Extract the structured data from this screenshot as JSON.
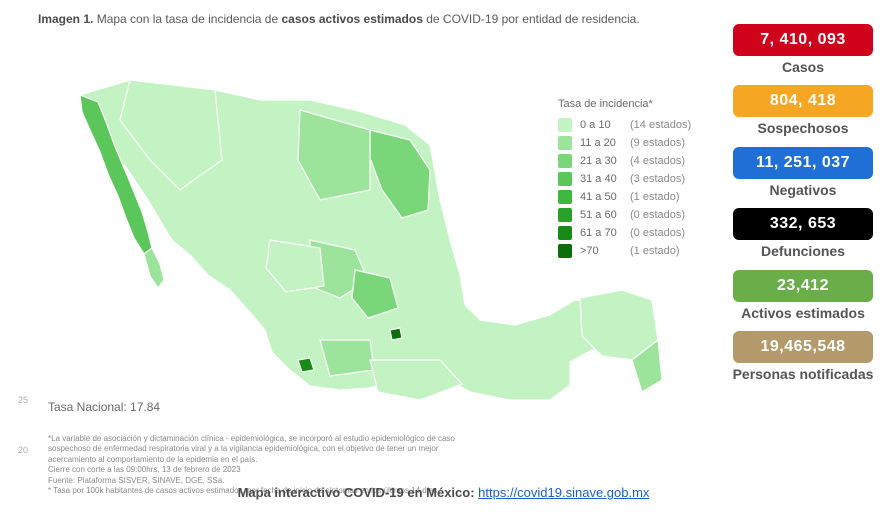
{
  "title_prefix": "Imagen 1.",
  "title_text_a": " Mapa con la tasa de incidencia de ",
  "title_bold": "casos activos estimados",
  "title_text_b": " de COVID-19 por entidad de residencia.",
  "map": {
    "legend_title": "Tasa de incidencia*",
    "colors": [
      "#c3f2c3",
      "#9ce49c",
      "#79d679",
      "#5bc75b",
      "#3fb63f",
      "#2aa02a",
      "#188a18",
      "#0a6e0a"
    ],
    "ranges": [
      "0 a 10",
      "11 a 20",
      "21 a 30",
      "31 a 40",
      "41 a 50",
      "51 a 60",
      "61 a 70",
      ">70"
    ],
    "counts": [
      "(14 estados)",
      "(9 estados)",
      "(4 estados)",
      "(3 estados)",
      "(1 estado)",
      "(0 estados)",
      "(0 estados)",
      "(1 estado)"
    ],
    "tasa_nacional": "Tasa Nacional: 17.84",
    "outline_color": "#ffffff",
    "water_color": "#ffffff"
  },
  "footnotes": [
    "*La variable de asociación y dictaminación clínica - epidemiológica, se incorporó al estudio epidemiológico de caso sospechoso de enfermedad respiratoria viral y a la vigilancia epidemiológica, con el objetivo de tener un mejor acercamiento al comportamiento de la epidemia en el país.",
    "Cierre con corte a las 09:00hrs, 13 de febrero de 2023",
    "Fuente: Plataforma SISVER, SINAVE, DGE, SSa.",
    "* Tasa por 100k habitantes de casos activos estimados, por fecha de inicio de síntomas en los últimos 14 días."
  ],
  "bottom": {
    "label": "Mapa interactivo COVID-19 en México: ",
    "link_text": "https://covid19.sinave.gob.mx"
  },
  "stats": [
    {
      "value": "7, 410, 093",
      "label": "Casos",
      "bg": "#d0021b"
    },
    {
      "value": "804, 418",
      "label": "Sospechosos",
      "bg": "#f5a623"
    },
    {
      "value": "11, 251, 037",
      "label": "Negativos",
      "bg": "#1f6fd6"
    },
    {
      "value": "332, 653",
      "label": "Defunciones",
      "bg": "#000000"
    },
    {
      "value": "23,412",
      "label": "Activos estimados",
      "bg": "#6aae4a"
    },
    {
      "value": "19,465,548",
      "label": "Personas notificadas",
      "bg": "#b49a6a"
    }
  ],
  "axis_ticks": [
    "25",
    "20"
  ]
}
